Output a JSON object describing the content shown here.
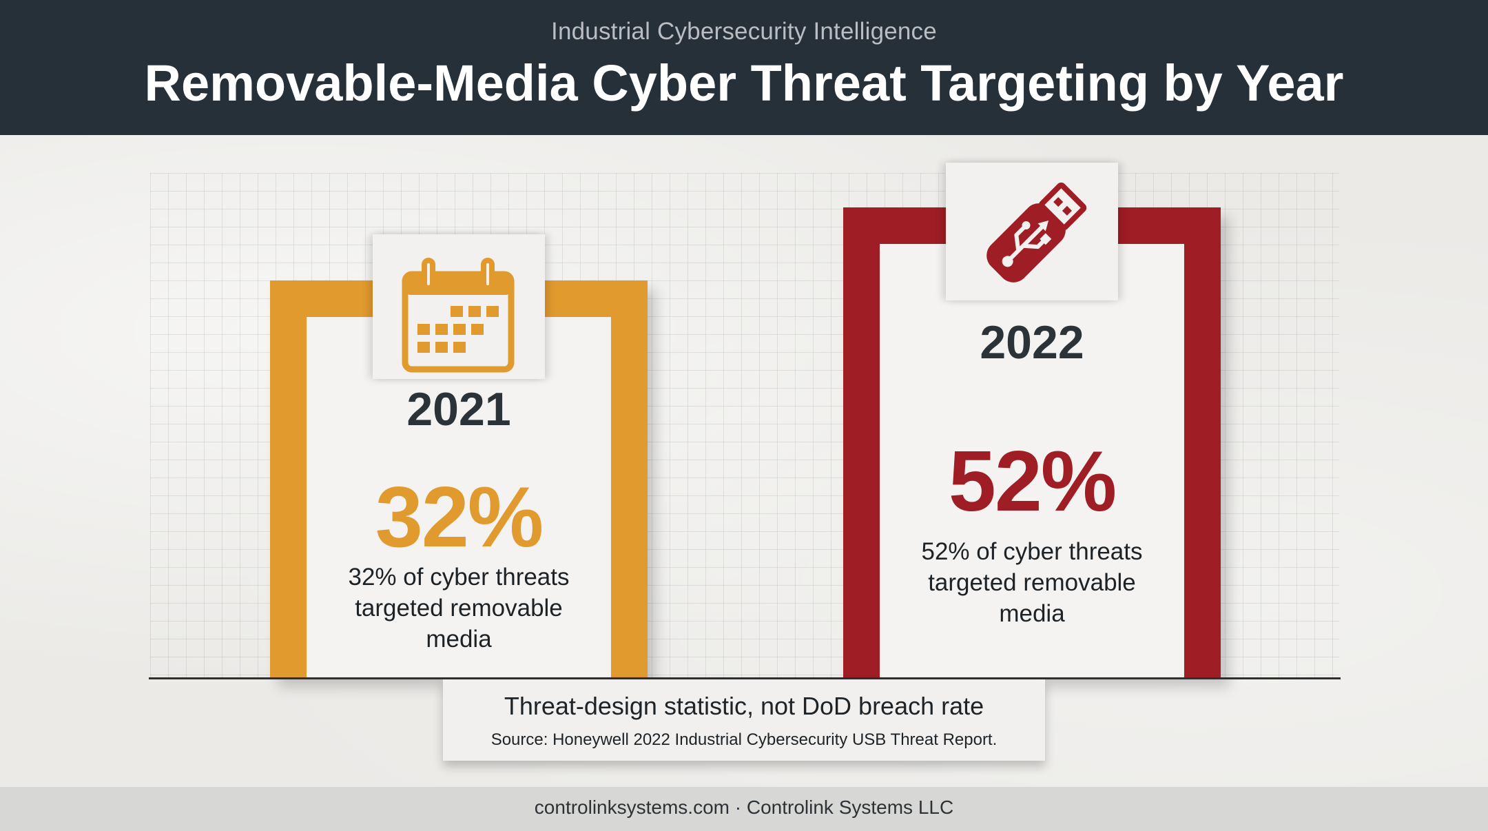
{
  "header": {
    "kicker": "Industrial Cybersecurity Intelligence",
    "title": "Removable-Media Cyber Threat Targeting by Year"
  },
  "chart_data": {
    "type": "bar",
    "categories": [
      "2021",
      "2022"
    ],
    "values": [
      32,
      52
    ],
    "value_labels": [
      "32%",
      "52%"
    ],
    "descriptions": [
      "32% of cyber threats targeted removable media",
      "52% of cyber threats targeted removable media"
    ],
    "colors": [
      "#e19a2e",
      "#9f1d24"
    ],
    "icons": [
      "calendar-icon",
      "usb-drive-icon"
    ],
    "ylim": [
      0,
      100
    ],
    "grid": true,
    "legend": "none"
  },
  "bars": [
    {
      "year": "2021",
      "pct": "32%",
      "desc": [
        "32% of cyber threats",
        "targeted removable",
        "media"
      ]
    },
    {
      "year": "2022",
      "pct": "52%",
      "desc": [
        "52% of cyber threats",
        "targeted removable",
        "media"
      ]
    }
  ],
  "note": {
    "main": "Threat-design statistic, not DoD breach rate",
    "source": "Source: Honeywell 2022 Industrial Cybersecurity USB Threat Report."
  },
  "footer": {
    "text": "controlinksystems.com · Controlink Systems LLC"
  }
}
